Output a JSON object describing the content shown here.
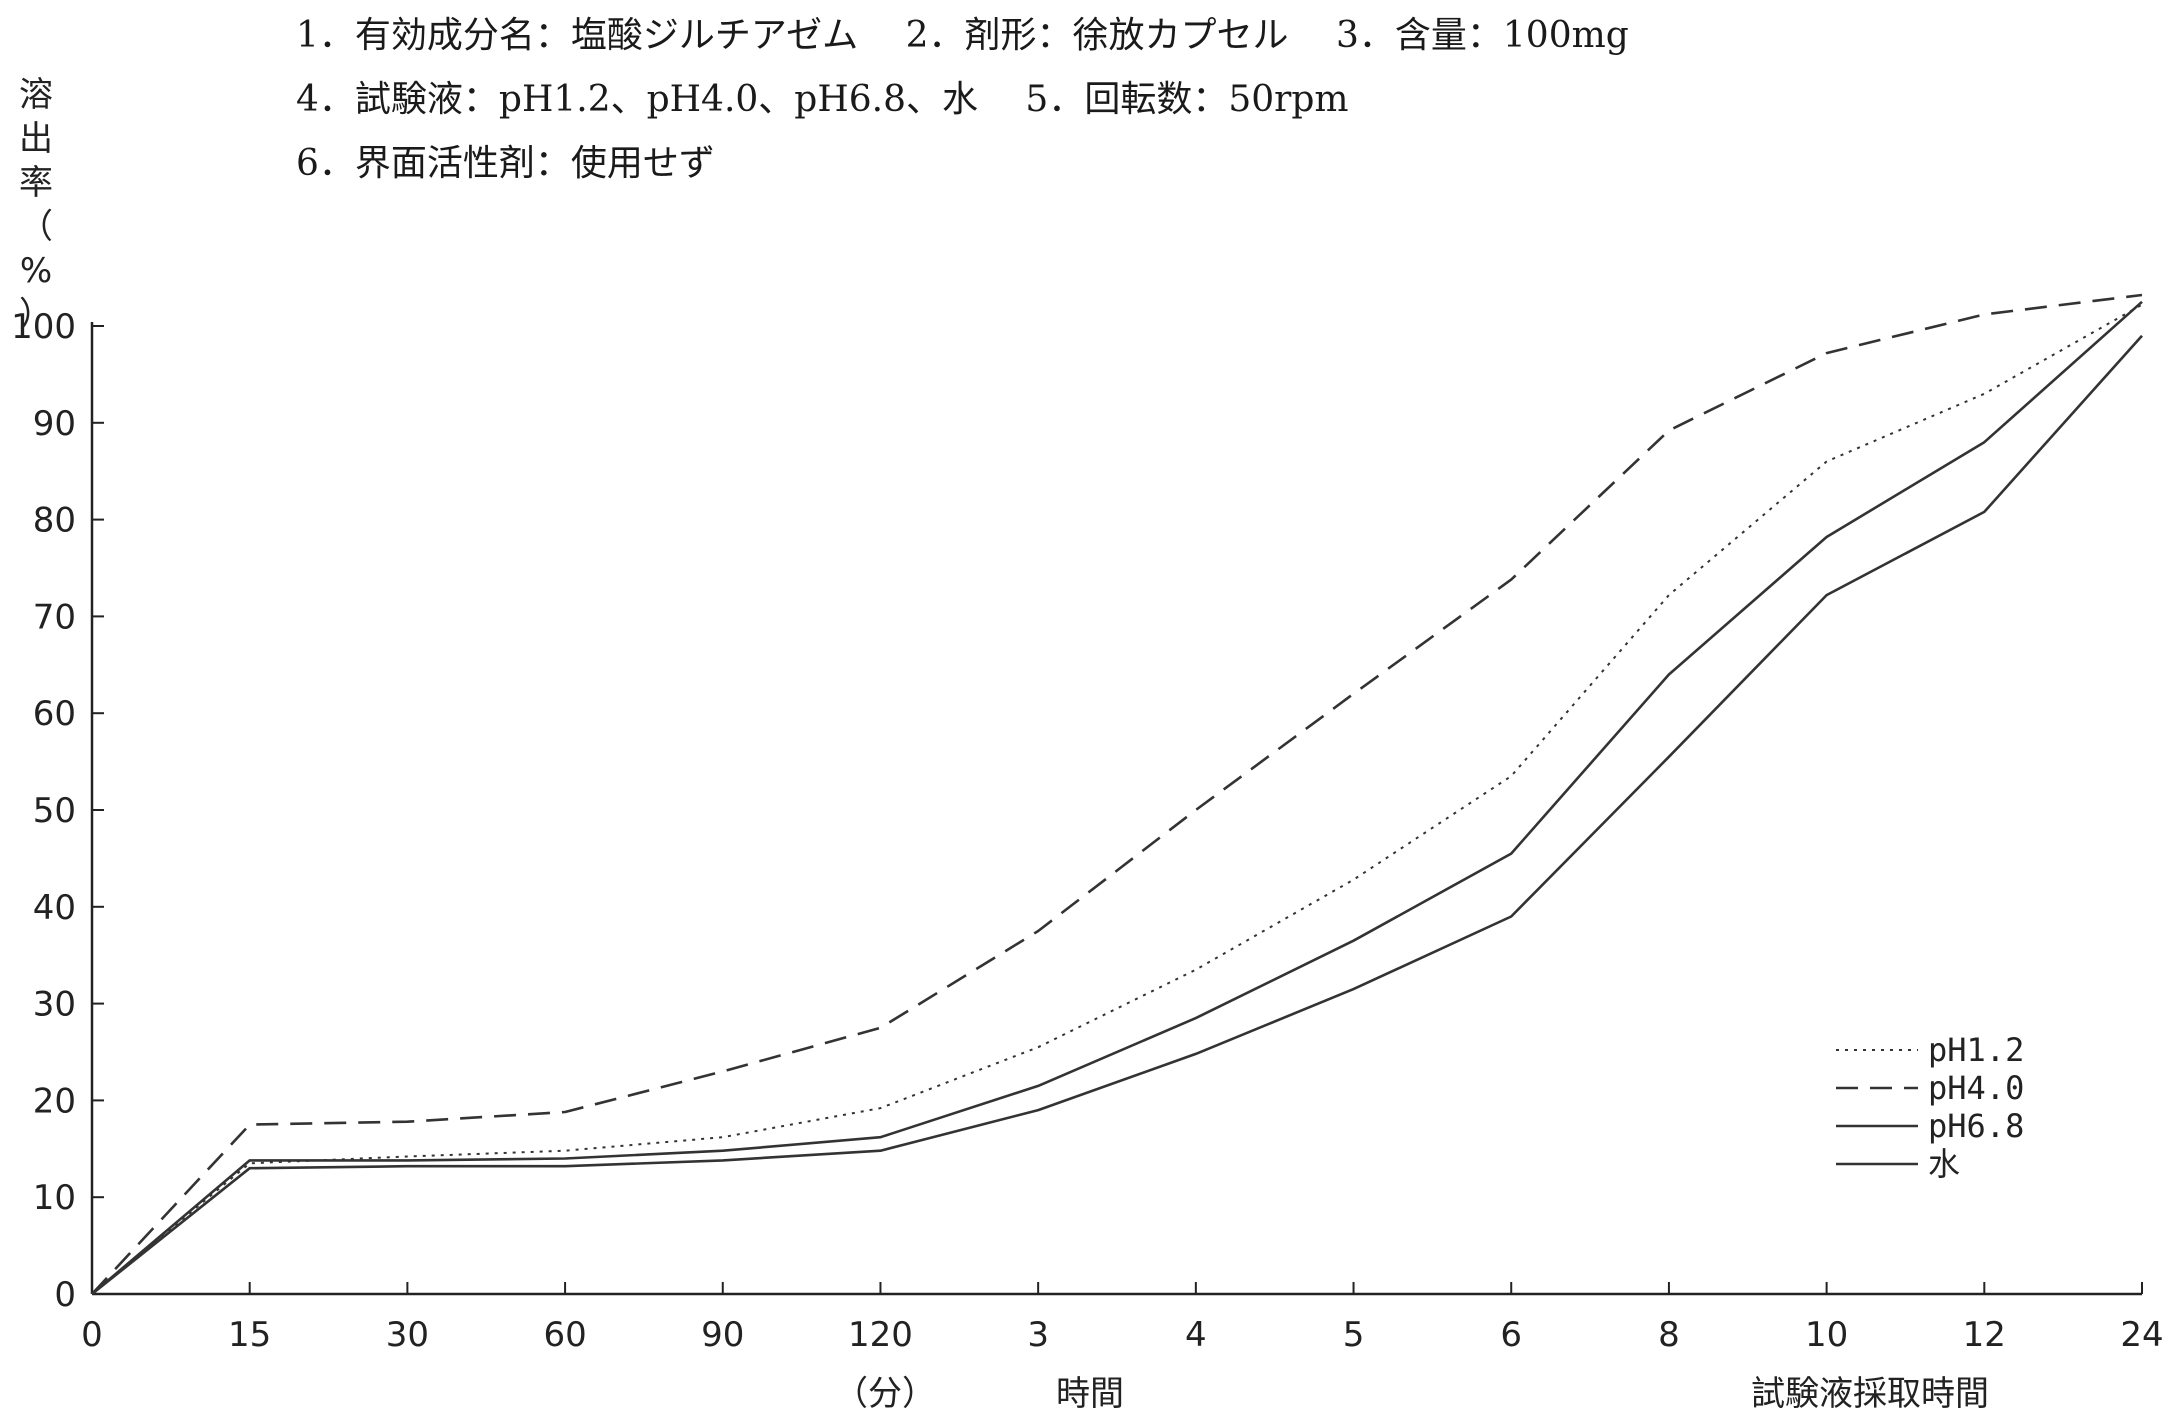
{
  "header": {
    "line1": "1．有効成分名：塩酸ジルチアゼム　 2．剤形：徐放カプセル　 3．含量：100mg",
    "line2": "4．試験液：pH1.2、pH4.0、pH6.8、水　 5．回転数：50rpm",
    "line3": "6．界面活性剤：使用せず"
  },
  "chart_data": {
    "type": "line",
    "ylabel": "溶出率（%）",
    "xlabel": "試験液採取時間",
    "x_unit_minutes": "（分）",
    "x_unit_hours": "時間",
    "categories": [
      "0",
      "15",
      "30",
      "60",
      "90",
      "120",
      "3",
      "4",
      "5",
      "6",
      "8",
      "10",
      "12",
      "24"
    ],
    "ylim": [
      0,
      100
    ],
    "yticks": [
      0,
      10,
      20,
      30,
      40,
      50,
      60,
      70,
      80,
      90,
      100
    ],
    "grid": false,
    "legend_position": "bottom-right",
    "series": [
      {
        "name": "pH1.2",
        "style": "dotted",
        "values": [
          0,
          13.5,
          14.2,
          14.8,
          16.2,
          19.2,
          25.5,
          33.5,
          42.8,
          53.5,
          72.2,
          86.0,
          93.0,
          102.2
        ]
      },
      {
        "name": "pH4.0",
        "style": "dashed",
        "values": [
          0,
          17.5,
          17.8,
          18.8,
          23.0,
          27.5,
          37.5,
          50.0,
          62.0,
          73.8,
          89.2,
          97.2,
          101.2,
          103.2
        ]
      },
      {
        "name": "pH6.8",
        "style": "solid",
        "values": [
          0,
          13.8,
          13.8,
          14.0,
          14.8,
          16.2,
          21.5,
          28.5,
          36.5,
          45.5,
          64.0,
          78.2,
          88.0,
          102.5
        ]
      },
      {
        "name": "水",
        "style": "solid",
        "values": [
          0,
          13.0,
          13.2,
          13.2,
          13.8,
          14.8,
          19.0,
          24.8,
          31.5,
          39.0,
          55.5,
          72.2,
          80.8,
          99.0
        ]
      }
    ]
  }
}
